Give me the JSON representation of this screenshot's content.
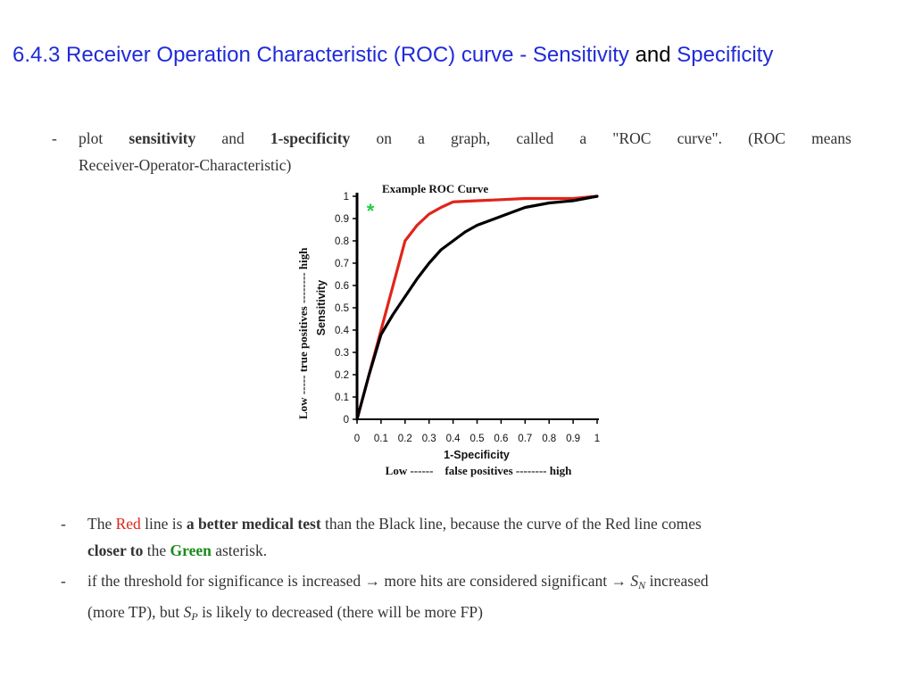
{
  "title": {
    "part1": "6.4.3 Receiver Operation Characteristic (ROC) curve - Sensitivity",
    "part2": "and",
    "part3": "Specificity"
  },
  "bullet1": {
    "dash": "-",
    "w1": "plot",
    "w2": "sensitivity",
    "w3": "and",
    "w4": "1-specificity",
    "w5": "on",
    "w6": "a",
    "w7": "graph,",
    "w8": "called",
    "w9": "a",
    "w10": "\"ROC",
    "w11": "curve\".",
    "w12": "(ROC",
    "w13": "means",
    "line2": "Receiver-Operator-Characteristic)"
  },
  "bullet2": {
    "dash": "-",
    "t1": "The ",
    "red": "Red",
    "t2": " line is ",
    "bold": "a better medical test",
    "t3": " than the Black line, because the curve of the Red line comes",
    "bold2": "closer to",
    "t4": " the ",
    "green": "Green",
    "t5": " asterisk."
  },
  "bullet3": {
    "dash": "-",
    "t1": "if the threshold for significance is increased ",
    "arrow": "→",
    "t2": " more hits are considered significant ",
    "arrow2": "→",
    "sn_s": "S",
    "sn_sub": "N",
    "t3": " increased",
    "t4": "(more TP), but ",
    "sp_s": "S",
    "sp_sub": "P",
    "t5": " is likely to decreased (there will be more FP)"
  },
  "chart_data": {
    "type": "line",
    "title": "Example ROC Curve",
    "xlabel": "1-Specificity",
    "xlabel_sub": "Low ------    false positives -------- high",
    "ylabel": "Sensitivity",
    "ylabel_outer": "Low -----    true positives -------- high",
    "xlim": [
      0,
      1
    ],
    "ylim": [
      0,
      1
    ],
    "xticks": [
      "0",
      "0.1",
      "0.2",
      "0.3",
      "0.4",
      "0.5",
      "0.6",
      "0.7",
      "0.8",
      "0.9",
      "1"
    ],
    "yticks": [
      "0",
      "0.1",
      "0.2",
      "0.3",
      "0.4",
      "0.5",
      "0.6",
      "0.7",
      "0.8",
      "0.9",
      "1"
    ],
    "marker": {
      "symbol": "*",
      "x": 0.04,
      "y": 0.96,
      "color": "#22cc44"
    },
    "series": [
      {
        "color": "#e0241a",
        "x": [
          0,
          0.1,
          0.2,
          0.25,
          0.3,
          0.35,
          0.4,
          0.5,
          0.6,
          0.7,
          0.8,
          0.9,
          1.0
        ],
        "y": [
          0,
          0.4,
          0.8,
          0.87,
          0.92,
          0.95,
          0.975,
          0.98,
          0.985,
          0.99,
          0.99,
          0.99,
          1.0
        ]
      },
      {
        "color": "#000000",
        "x": [
          0,
          0.05,
          0.1,
          0.15,
          0.2,
          0.25,
          0.3,
          0.35,
          0.4,
          0.45,
          0.5,
          0.55,
          0.6,
          0.65,
          0.7,
          0.75,
          0.8,
          0.9,
          1.0
        ],
        "y": [
          0,
          0.2,
          0.38,
          0.47,
          0.55,
          0.63,
          0.7,
          0.76,
          0.8,
          0.84,
          0.87,
          0.89,
          0.91,
          0.93,
          0.95,
          0.96,
          0.97,
          0.98,
          1.0
        ]
      }
    ]
  }
}
